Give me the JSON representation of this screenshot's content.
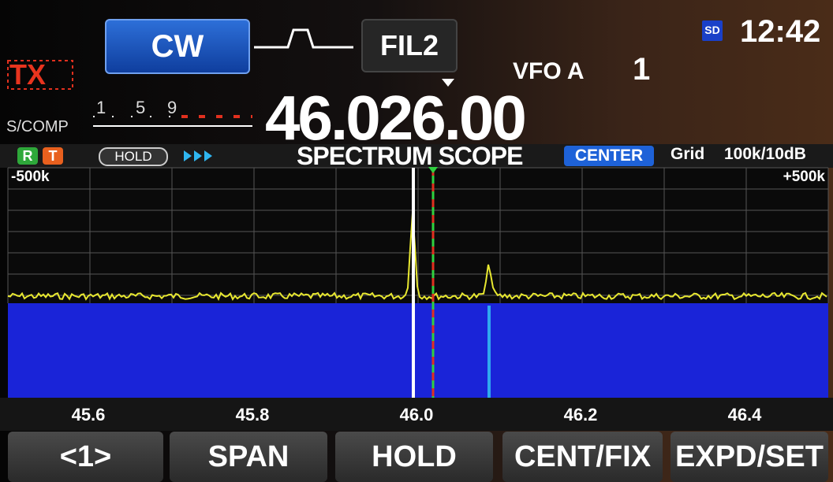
{
  "mode": "CW",
  "filter": "FIL2",
  "tx": "TX",
  "sd": "SD",
  "clock": "12:42",
  "vfo": "VFO A",
  "vfo_number": "1",
  "meter": {
    "label": "S/COMP",
    "scale": [
      "1",
      "5",
      "9"
    ]
  },
  "frequency": "46.026.00",
  "scope": {
    "badges": [
      "R",
      "T"
    ],
    "hold": "HOLD",
    "title": "SPECTRUM SCOPE",
    "mode": "CENTER",
    "grid_label": "Grid",
    "grid_value": "100k/10dB",
    "left_edge": "-500k",
    "right_edge": "+500k",
    "axis_labels": [
      "45.6",
      "45.8",
      "46.0",
      "46.2",
      "46.4"
    ]
  },
  "buttons": [
    "<1>",
    "SPAN",
    "HOLD",
    "CENT/FIX",
    "EXPD/SET"
  ]
}
